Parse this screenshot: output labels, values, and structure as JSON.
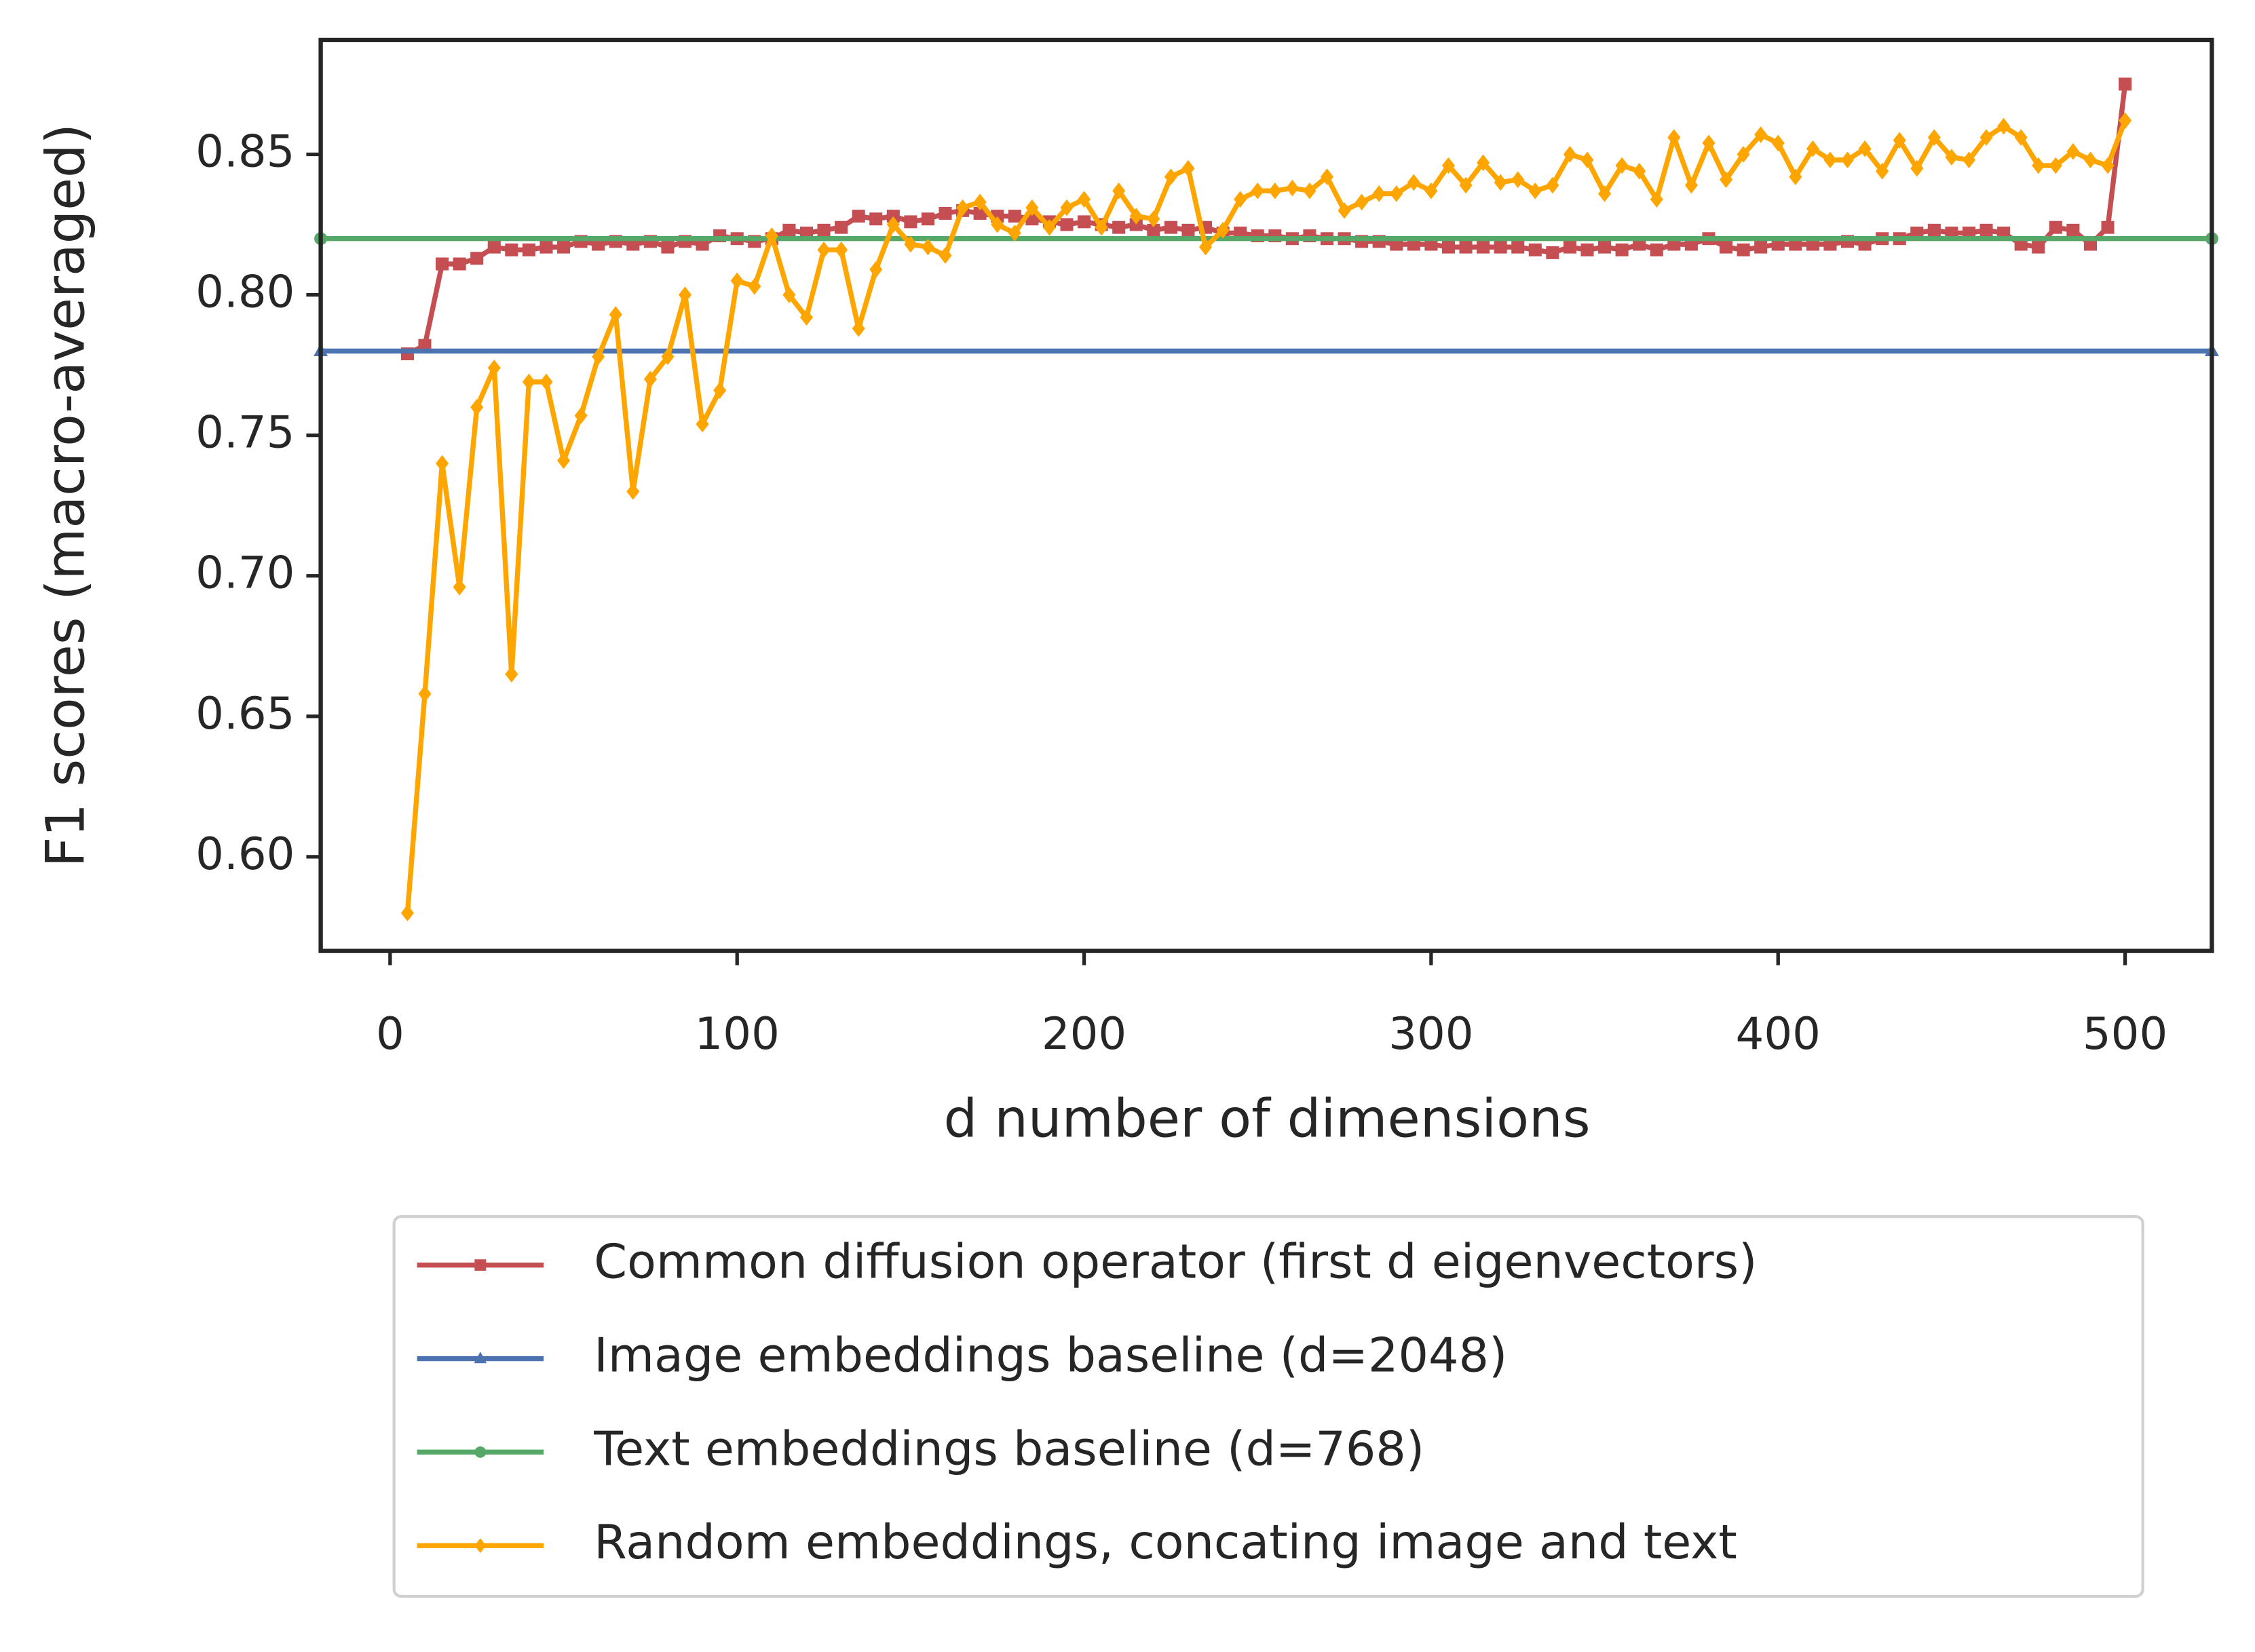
{
  "chart_data": {
    "type": "line",
    "xlabel": "d number of dimensions",
    "ylabel": "F1 scores (macro-averaged)",
    "x": [
      5,
      10,
      15,
      20,
      25,
      30,
      35,
      40,
      45,
      50,
      55,
      60,
      65,
      70,
      75,
      80,
      85,
      90,
      95,
      100,
      105,
      110,
      115,
      120,
      125,
      130,
      135,
      140,
      145,
      150,
      155,
      160,
      165,
      170,
      175,
      180,
      185,
      190,
      195,
      200,
      205,
      210,
      215,
      220,
      225,
      230,
      235,
      240,
      245,
      250,
      255,
      260,
      265,
      270,
      275,
      280,
      285,
      290,
      295,
      300,
      305,
      310,
      315,
      320,
      325,
      330,
      335,
      340,
      345,
      350,
      355,
      360,
      365,
      370,
      375,
      380,
      385,
      390,
      395,
      400,
      405,
      410,
      415,
      420,
      425,
      430,
      435,
      440,
      445,
      450,
      455,
      460,
      465,
      470,
      475,
      480,
      485,
      490,
      495,
      500
    ],
    "series": [
      {
        "name": "Common diffusion operator (first d eigenvectors)",
        "color": "#c44e52",
        "marker": "square",
        "values": [
          0.779,
          0.782,
          0.811,
          0.811,
          0.813,
          0.817,
          0.816,
          0.816,
          0.817,
          0.817,
          0.819,
          0.818,
          0.819,
          0.818,
          0.819,
          0.817,
          0.819,
          0.818,
          0.821,
          0.82,
          0.819,
          0.82,
          0.823,
          0.822,
          0.823,
          0.824,
          0.828,
          0.827,
          0.828,
          0.826,
          0.827,
          0.829,
          0.83,
          0.829,
          0.828,
          0.828,
          0.827,
          0.826,
          0.825,
          0.826,
          0.825,
          0.824,
          0.825,
          0.823,
          0.824,
          0.823,
          0.824,
          0.822,
          0.822,
          0.821,
          0.821,
          0.82,
          0.821,
          0.82,
          0.82,
          0.819,
          0.819,
          0.818,
          0.818,
          0.818,
          0.817,
          0.817,
          0.817,
          0.817,
          0.817,
          0.816,
          0.815,
          0.817,
          0.816,
          0.817,
          0.816,
          0.818,
          0.816,
          0.818,
          0.818,
          0.82,
          0.817,
          0.816,
          0.817,
          0.818,
          0.818,
          0.818,
          0.818,
          0.819,
          0.818,
          0.82,
          0.82,
          0.822,
          0.823,
          0.822,
          0.822,
          0.823,
          0.822,
          0.818,
          0.817,
          0.824,
          0.823,
          0.818,
          0.824,
          0.875
        ]
      },
      {
        "name": "Image embeddings baseline (d=2048)",
        "color": "#4c72b0",
        "marker": "triangle",
        "x": [
          -20,
          525
        ],
        "values": [
          0.78,
          0.78
        ]
      },
      {
        "name": "Text embeddings baseline (d=768)",
        "color": "#55a868",
        "marker": "circle",
        "x": [
          -20,
          525
        ],
        "values": [
          0.82,
          0.82
        ]
      },
      {
        "name": "Random embeddings, concating image and text",
        "color": "#ffa500",
        "marker": "diamond",
        "values": [
          0.58,
          0.658,
          0.74,
          0.696,
          0.76,
          0.774,
          0.665,
          0.769,
          0.769,
          0.741,
          0.757,
          0.778,
          0.793,
          0.73,
          0.77,
          0.778,
          0.8,
          0.754,
          0.766,
          0.805,
          0.803,
          0.821,
          0.8,
          0.792,
          0.816,
          0.816,
          0.788,
          0.809,
          0.825,
          0.818,
          0.817,
          0.814,
          0.831,
          0.833,
          0.825,
          0.822,
          0.831,
          0.824,
          0.831,
          0.834,
          0.824,
          0.837,
          0.828,
          0.827,
          0.842,
          0.845,
          0.817,
          0.823,
          0.834,
          0.837,
          0.837,
          0.838,
          0.837,
          0.842,
          0.83,
          0.833,
          0.836,
          0.836,
          0.84,
          0.837,
          0.846,
          0.839,
          0.847,
          0.84,
          0.841,
          0.837,
          0.839,
          0.85,
          0.848,
          0.836,
          0.846,
          0.844,
          0.834,
          0.856,
          0.839,
          0.854,
          0.841,
          0.85,
          0.857,
          0.854,
          0.842,
          0.852,
          0.848,
          0.848,
          0.852,
          0.844,
          0.855,
          0.845,
          0.856,
          0.849,
          0.848,
          0.856,
          0.86,
          0.856,
          0.846,
          0.846,
          0.851,
          0.848,
          0.846,
          0.862
        ]
      }
    ],
    "xlim": [
      -20,
      525
    ],
    "xticks": [
      0,
      100,
      200,
      300,
      400,
      500
    ],
    "ylim": [
      0.5665,
      0.8907
    ],
    "yticks": [
      {
        "value": 0.6,
        "label": "0.60"
      },
      0.65,
      {
        "value": 0.7,
        "label": "0.70"
      },
      0.75,
      {
        "value": 0.8,
        "label": "0.80"
      },
      0.85
    ],
    "grid": false,
    "legend": "below"
  }
}
